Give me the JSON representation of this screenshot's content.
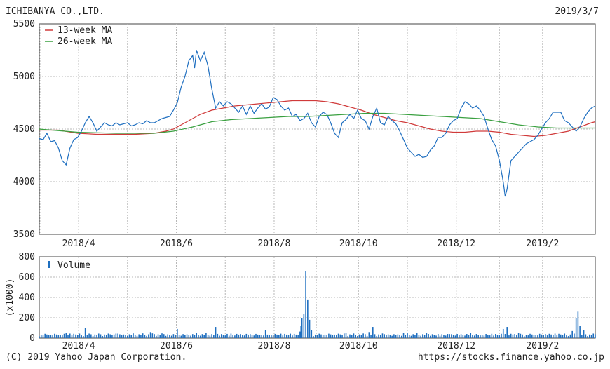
{
  "header": {
    "company": "ICHIBANYA CO.,LTD.",
    "date": "2019/3/7"
  },
  "footer": {
    "copyright": "(C) 2019 Yahoo Japan Corporation.",
    "url": "https://stocks.finance.yahoo.co.jp"
  },
  "colors": {
    "price": "#1f6fc0",
    "ma13": "#d03a3a",
    "ma26": "#3aa040",
    "volume": "#1f6fc0",
    "grid": "#b8b8b8",
    "axis": "#444444"
  },
  "chart_data": [
    {
      "type": "line",
      "x_tick_labels": [
        "2018/4",
        "2018/6",
        "2018/8",
        "2018/10",
        "2018/12",
        "2019/2"
      ],
      "x_tick_positions": [
        20.5,
        71.5,
        122.5,
        166.5,
        217.5,
        262.5
      ],
      "x_range": [
        0,
        290
      ],
      "ylim": [
        3500,
        5500
      ],
      "y_ticks": [
        3500,
        4000,
        4500,
        5000,
        5500
      ],
      "grid": true,
      "legend_position": "top-left",
      "series": [
        {
          "name": "",
          "role": "price",
          "points": [
            [
              0,
              4410
            ],
            [
              2,
              4400
            ],
            [
              4,
              4460
            ],
            [
              6,
              4380
            ],
            [
              8,
              4390
            ],
            [
              10,
              4320
            ],
            [
              12,
              4200
            ],
            [
              14,
              4160
            ],
            [
              16,
              4320
            ],
            [
              18,
              4400
            ],
            [
              20,
              4420
            ],
            [
              22,
              4480
            ],
            [
              24,
              4560
            ],
            [
              26,
              4620
            ],
            [
              28,
              4560
            ],
            [
              30,
              4480
            ],
            [
              32,
              4520
            ],
            [
              34,
              4560
            ],
            [
              36,
              4540
            ],
            [
              38,
              4530
            ],
            [
              40,
              4560
            ],
            [
              42,
              4540
            ],
            [
              44,
              4550
            ],
            [
              46,
              4560
            ],
            [
              48,
              4530
            ],
            [
              50,
              4540
            ],
            [
              52,
              4560
            ],
            [
              54,
              4550
            ],
            [
              56,
              4580
            ],
            [
              58,
              4560
            ],
            [
              60,
              4560
            ],
            [
              62,
              4580
            ],
            [
              64,
              4600
            ],
            [
              66,
              4610
            ],
            [
              68,
              4620
            ],
            [
              70,
              4680
            ],
            [
              72,
              4750
            ],
            [
              74,
              4900
            ],
            [
              76,
              5000
            ],
            [
              78,
              5150
            ],
            [
              80,
              5200
            ],
            [
              81,
              5080
            ],
            [
              82,
              5250
            ],
            [
              84,
              5150
            ],
            [
              86,
              5230
            ],
            [
              88,
              5100
            ],
            [
              90,
              4880
            ],
            [
              92,
              4700
            ],
            [
              94,
              4760
            ],
            [
              96,
              4720
            ],
            [
              98,
              4760
            ],
            [
              100,
              4740
            ],
            [
              102,
              4700
            ],
            [
              104,
              4660
            ],
            [
              106,
              4720
            ],
            [
              108,
              4640
            ],
            [
              110,
              4720
            ],
            [
              112,
              4650
            ],
            [
              114,
              4700
            ],
            [
              116,
              4740
            ],
            [
              118,
              4690
            ],
            [
              120,
              4710
            ],
            [
              122,
              4800
            ],
            [
              124,
              4780
            ],
            [
              126,
              4720
            ],
            [
              128,
              4680
            ],
            [
              130,
              4700
            ],
            [
              132,
              4620
            ],
            [
              134,
              4640
            ],
            [
              136,
              4580
            ],
            [
              138,
              4600
            ],
            [
              140,
              4650
            ],
            [
              142,
              4560
            ],
            [
              144,
              4520
            ],
            [
              146,
              4620
            ],
            [
              148,
              4660
            ],
            [
              150,
              4640
            ],
            [
              152,
              4560
            ],
            [
              154,
              4460
            ],
            [
              156,
              4420
            ],
            [
              158,
              4560
            ],
            [
              160,
              4590
            ],
            [
              162,
              4640
            ],
            [
              164,
              4600
            ],
            [
              166,
              4680
            ],
            [
              168,
              4600
            ],
            [
              170,
              4580
            ],
            [
              172,
              4500
            ],
            [
              174,
              4620
            ],
            [
              176,
              4700
            ],
            [
              178,
              4560
            ],
            [
              180,
              4540
            ],
            [
              182,
              4620
            ],
            [
              184,
              4580
            ],
            [
              186,
              4550
            ],
            [
              188,
              4480
            ],
            [
              190,
              4400
            ],
            [
              192,
              4320
            ],
            [
              194,
              4280
            ],
            [
              196,
              4240
            ],
            [
              198,
              4260
            ],
            [
              200,
              4230
            ],
            [
              202,
              4240
            ],
            [
              204,
              4300
            ],
            [
              206,
              4340
            ],
            [
              208,
              4420
            ],
            [
              210,
              4420
            ],
            [
              212,
              4460
            ],
            [
              214,
              4540
            ],
            [
              216,
              4580
            ],
            [
              218,
              4600
            ],
            [
              220,
              4700
            ],
            [
              222,
              4760
            ],
            [
              224,
              4740
            ],
            [
              226,
              4700
            ],
            [
              228,
              4720
            ],
            [
              230,
              4680
            ],
            [
              232,
              4620
            ],
            [
              234,
              4500
            ],
            [
              236,
              4400
            ],
            [
              238,
              4340
            ],
            [
              240,
              4200
            ],
            [
              242,
              4000
            ],
            [
              243,
              3860
            ],
            [
              244,
              3930
            ],
            [
              246,
              4200
            ],
            [
              248,
              4240
            ],
            [
              250,
              4280
            ],
            [
              252,
              4320
            ],
            [
              254,
              4360
            ],
            [
              256,
              4380
            ],
            [
              258,
              4400
            ],
            [
              260,
              4440
            ],
            [
              262,
              4500
            ],
            [
              264,
              4560
            ],
            [
              266,
              4600
            ],
            [
              268,
              4660
            ],
            [
              270,
              4660
            ],
            [
              272,
              4660
            ],
            [
              274,
              4580
            ],
            [
              276,
              4560
            ],
            [
              278,
              4520
            ],
            [
              280,
              4480
            ],
            [
              282,
              4520
            ],
            [
              284,
              4600
            ],
            [
              286,
              4660
            ],
            [
              288,
              4700
            ],
            [
              290,
              4720
            ]
          ]
        },
        {
          "name": "13-week MA",
          "role": "ma13",
          "points": [
            [
              0,
              4490
            ],
            [
              10,
              4490
            ],
            [
              20,
              4460
            ],
            [
              30,
              4450
            ],
            [
              40,
              4450
            ],
            [
              50,
              4450
            ],
            [
              60,
              4460
            ],
            [
              66,
              4480
            ],
            [
              70,
              4500
            ],
            [
              74,
              4540
            ],
            [
              78,
              4580
            ],
            [
              84,
              4640
            ],
            [
              90,
              4680
            ],
            [
              96,
              4700
            ],
            [
              102,
              4720
            ],
            [
              108,
              4730
            ],
            [
              114,
              4740
            ],
            [
              120,
              4750
            ],
            [
              126,
              4760
            ],
            [
              132,
              4770
            ],
            [
              138,
              4770
            ],
            [
              144,
              4770
            ],
            [
              150,
              4760
            ],
            [
              156,
              4740
            ],
            [
              162,
              4710
            ],
            [
              168,
              4680
            ],
            [
              174,
              4640
            ],
            [
              180,
              4610
            ],
            [
              186,
              4580
            ],
            [
              192,
              4560
            ],
            [
              198,
              4530
            ],
            [
              204,
              4500
            ],
            [
              210,
              4480
            ],
            [
              216,
              4470
            ],
            [
              222,
              4470
            ],
            [
              228,
              4480
            ],
            [
              234,
              4480
            ],
            [
              240,
              4470
            ],
            [
              246,
              4450
            ],
            [
              252,
              4440
            ],
            [
              258,
              4430
            ],
            [
              264,
              4440
            ],
            [
              270,
              4460
            ],
            [
              276,
              4480
            ],
            [
              282,
              4520
            ],
            [
              288,
              4560
            ],
            [
              290,
              4570
            ]
          ]
        },
        {
          "name": "26-week MA",
          "role": "ma26",
          "points": [
            [
              0,
              4500
            ],
            [
              20,
              4470
            ],
            [
              40,
              4460
            ],
            [
              60,
              4460
            ],
            [
              70,
              4480
            ],
            [
              80,
              4520
            ],
            [
              90,
              4570
            ],
            [
              100,
              4590
            ],
            [
              110,
              4600
            ],
            [
              120,
              4610
            ],
            [
              130,
              4620
            ],
            [
              140,
              4620
            ],
            [
              150,
              4630
            ],
            [
              160,
              4640
            ],
            [
              170,
              4650
            ],
            [
              180,
              4650
            ],
            [
              190,
              4640
            ],
            [
              200,
              4630
            ],
            [
              210,
              4620
            ],
            [
              220,
              4610
            ],
            [
              230,
              4600
            ],
            [
              240,
              4570
            ],
            [
              250,
              4540
            ],
            [
              260,
              4520
            ],
            [
              270,
              4510
            ],
            [
              280,
              4510
            ],
            [
              290,
              4510
            ]
          ]
        }
      ]
    },
    {
      "type": "bar",
      "ylabel": "(x1000)",
      "ylim": [
        0,
        800
      ],
      "y_ticks": [
        0,
        200,
        400,
        600,
        800
      ],
      "x_tick_labels": [
        "2018/4",
        "2018/6",
        "2018/8",
        "2018/10",
        "2018/12",
        "2019/2"
      ],
      "grid": true,
      "legend_position": "top-left",
      "series": [
        {
          "name": "Volume",
          "role": "volume",
          "spikes": [
            [
              14,
              55
            ],
            [
              24,
              100
            ],
            [
              40,
              45
            ],
            [
              58,
              60
            ],
            [
              72,
              90
            ],
            [
              92,
              110
            ],
            [
              100,
              45
            ],
            [
              118,
              80
            ],
            [
              136,
              65
            ],
            [
              136.5,
              120
            ],
            [
              137,
              200
            ],
            [
              138,
              240
            ],
            [
              139,
              660
            ],
            [
              140,
              380
            ],
            [
              141,
              180
            ],
            [
              142,
              80
            ],
            [
              160,
              55
            ],
            [
              172,
              60
            ],
            [
              174,
              110
            ],
            [
              190,
              50
            ],
            [
              214,
              40
            ],
            [
              242,
              90
            ],
            [
              244,
              110
            ],
            [
              250,
              50
            ],
            [
              264,
              40
            ],
            [
              278,
              70
            ],
            [
              280,
              200
            ],
            [
              281,
              260
            ],
            [
              282,
              120
            ],
            [
              284,
              80
            ]
          ]
        }
      ]
    }
  ]
}
